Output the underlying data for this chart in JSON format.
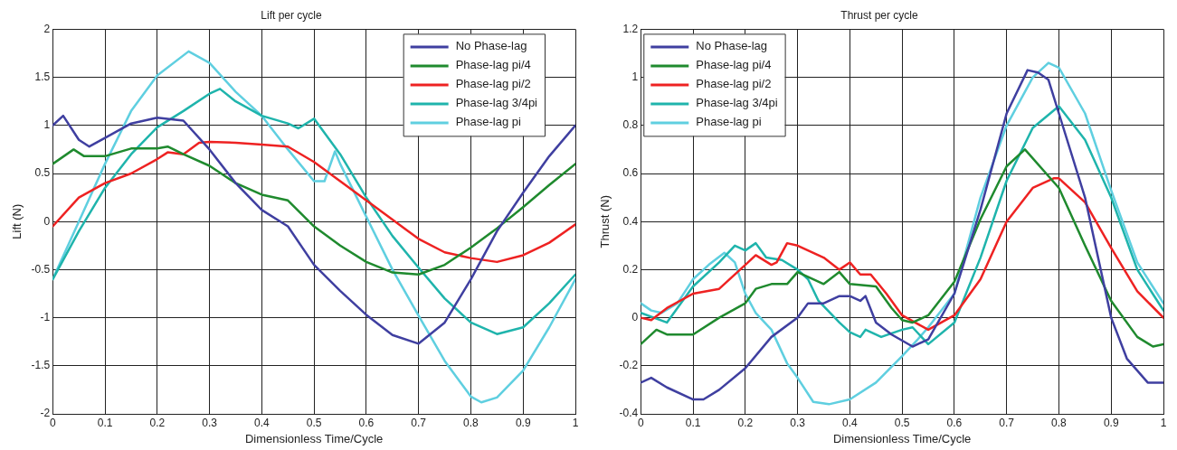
{
  "chart_data": [
    {
      "type": "line",
      "title": "Lift per cycle",
      "xlabel": "Dimensionless Time/Cycle",
      "ylabel": "Lift (N)",
      "xlim": [
        0,
        1
      ],
      "ylim": [
        -2,
        2
      ],
      "xticks": [
        0,
        0.1,
        0.2,
        0.3,
        0.4,
        0.5,
        0.6,
        0.7,
        0.8,
        0.9,
        1
      ],
      "yticks": [
        -2,
        -1.5,
        -1,
        -0.5,
        0,
        0.5,
        1,
        1.5,
        2
      ],
      "grid": true,
      "legend": "top right",
      "series": [
        {
          "name": "No Phase-lag",
          "color": "#3f3fa0",
          "x": [
            0,
            0.02,
            0.05,
            0.07,
            0.1,
            0.15,
            0.2,
            0.25,
            0.3,
            0.35,
            0.4,
            0.45,
            0.5,
            0.55,
            0.6,
            0.65,
            0.7,
            0.75,
            0.8,
            0.85,
            0.9,
            0.95,
            1
          ],
          "values": [
            1.0,
            1.1,
            0.85,
            0.78,
            0.87,
            1.02,
            1.08,
            1.05,
            0.75,
            0.4,
            0.12,
            -0.05,
            -0.45,
            -0.72,
            -0.97,
            -1.18,
            -1.27,
            -1.05,
            -0.6,
            -0.1,
            0.3,
            0.68,
            1.0
          ]
        },
        {
          "name": "Phase-lag pi/4",
          "color": "#1f8a2e",
          "x": [
            0,
            0.04,
            0.06,
            0.1,
            0.15,
            0.2,
            0.22,
            0.25,
            0.3,
            0.35,
            0.4,
            0.45,
            0.5,
            0.55,
            0.6,
            0.65,
            0.7,
            0.75,
            0.8,
            0.85,
            0.9,
            0.95,
            1
          ],
          "values": [
            0.6,
            0.75,
            0.68,
            0.68,
            0.76,
            0.76,
            0.78,
            0.7,
            0.58,
            0.4,
            0.28,
            0.22,
            -0.05,
            -0.25,
            -0.42,
            -0.53,
            -0.55,
            -0.45,
            -0.27,
            -0.07,
            0.15,
            0.38,
            0.6
          ]
        },
        {
          "name": "Phase-lag pi/2",
          "color": "#ee2222",
          "x": [
            0,
            0.05,
            0.1,
            0.15,
            0.2,
            0.22,
            0.25,
            0.28,
            0.3,
            0.35,
            0.4,
            0.45,
            0.5,
            0.55,
            0.6,
            0.65,
            0.7,
            0.75,
            0.8,
            0.85,
            0.9,
            0.95,
            1
          ],
          "values": [
            -0.05,
            0.25,
            0.4,
            0.5,
            0.65,
            0.72,
            0.7,
            0.82,
            0.83,
            0.82,
            0.8,
            0.78,
            0.62,
            0.42,
            0.22,
            0.02,
            -0.18,
            -0.32,
            -0.38,
            -0.42,
            -0.35,
            -0.22,
            -0.03
          ]
        },
        {
          "name": "Phase-lag 3/4pi",
          "color": "#1fb4ac",
          "x": [
            0,
            0.05,
            0.1,
            0.15,
            0.2,
            0.25,
            0.3,
            0.32,
            0.35,
            0.4,
            0.45,
            0.47,
            0.5,
            0.55,
            0.6,
            0.65,
            0.7,
            0.75,
            0.8,
            0.85,
            0.9,
            0.95,
            1
          ],
          "values": [
            -0.6,
            -0.1,
            0.35,
            0.7,
            0.98,
            1.15,
            1.33,
            1.38,
            1.25,
            1.1,
            1.02,
            0.97,
            1.07,
            0.7,
            0.25,
            -0.15,
            -0.48,
            -0.8,
            -1.05,
            -1.17,
            -1.1,
            -0.85,
            -0.55
          ]
        },
        {
          "name": "Phase-lag pi",
          "color": "#5fcfe0",
          "x": [
            0,
            0.05,
            0.1,
            0.15,
            0.2,
            0.26,
            0.3,
            0.35,
            0.4,
            0.45,
            0.5,
            0.52,
            0.54,
            0.55,
            0.6,
            0.65,
            0.7,
            0.75,
            0.8,
            0.82,
            0.85,
            0.9,
            0.95,
            1
          ],
          "values": [
            -0.6,
            0.0,
            0.6,
            1.15,
            1.52,
            1.77,
            1.65,
            1.35,
            1.1,
            0.75,
            0.42,
            0.42,
            0.73,
            0.6,
            0.05,
            -0.5,
            -0.98,
            -1.45,
            -1.82,
            -1.88,
            -1.83,
            -1.55,
            -1.1,
            -0.6
          ]
        }
      ]
    },
    {
      "type": "line",
      "title": "Thrust per cycle",
      "xlabel": "Dimensionless Time/Cycle",
      "ylabel": "Thrust (N)",
      "xlim": [
        0,
        1
      ],
      "ylim": [
        -0.4,
        1.2
      ],
      "xticks": [
        0,
        0.1,
        0.2,
        0.3,
        0.4,
        0.5,
        0.6,
        0.7,
        0.8,
        0.9,
        1
      ],
      "yticks": [
        -0.4,
        -0.2,
        0,
        0.2,
        0.4,
        0.6,
        0.8,
        1,
        1.2
      ],
      "grid": true,
      "legend": "top left",
      "series": [
        {
          "name": "No Phase-lag",
          "color": "#3f3fa0",
          "x": [
            0,
            0.02,
            0.05,
            0.1,
            0.12,
            0.15,
            0.2,
            0.25,
            0.3,
            0.32,
            0.35,
            0.38,
            0.4,
            0.42,
            0.43,
            0.45,
            0.48,
            0.52,
            0.55,
            0.6,
            0.65,
            0.7,
            0.74,
            0.76,
            0.78,
            0.8,
            0.85,
            0.9,
            0.93,
            0.95,
            0.97,
            1
          ],
          "values": [
            -0.27,
            -0.25,
            -0.29,
            -0.34,
            -0.34,
            -0.3,
            -0.21,
            -0.08,
            0,
            0.06,
            0.06,
            0.09,
            0.09,
            0.07,
            0.09,
            -0.02,
            -0.07,
            -0.12,
            -0.09,
            0.1,
            0.45,
            0.85,
            1.03,
            1.02,
            0.99,
            0.85,
            0.5,
            0,
            -0.17,
            -0.22,
            -0.27,
            -0.27
          ]
        },
        {
          "name": "Phase-lag pi/4",
          "color": "#1f8a2e",
          "x": [
            0,
            0.03,
            0.05,
            0.1,
            0.15,
            0.2,
            0.22,
            0.25,
            0.28,
            0.3,
            0.35,
            0.38,
            0.4,
            0.45,
            0.48,
            0.5,
            0.52,
            0.55,
            0.6,
            0.65,
            0.7,
            0.735,
            0.8,
            0.85,
            0.9,
            0.95,
            0.98,
            1
          ],
          "values": [
            -0.11,
            -0.05,
            -0.07,
            -0.07,
            0,
            0.06,
            0.12,
            0.14,
            0.14,
            0.19,
            0.14,
            0.19,
            0.14,
            0.13,
            0.04,
            -0.01,
            -0.02,
            0.01,
            0.15,
            0.41,
            0.63,
            0.7,
            0.54,
            0.3,
            0.07,
            -0.08,
            -0.12,
            -0.11
          ]
        },
        {
          "name": "Phase-lag pi/2",
          "color": "#ee2222",
          "x": [
            0,
            0.02,
            0.05,
            0.1,
            0.15,
            0.2,
            0.22,
            0.25,
            0.26,
            0.28,
            0.3,
            0.35,
            0.38,
            0.4,
            0.42,
            0.44,
            0.47,
            0.5,
            0.55,
            0.6,
            0.65,
            0.7,
            0.75,
            0.79,
            0.8,
            0.85,
            0.9,
            0.95,
            1
          ],
          "values": [
            0,
            -0.01,
            0.04,
            0.1,
            0.12,
            0.22,
            0.26,
            0.22,
            0.23,
            0.31,
            0.3,
            0.25,
            0.2,
            0.23,
            0.18,
            0.18,
            0.1,
            0.01,
            -0.05,
            0.01,
            0.16,
            0.4,
            0.54,
            0.58,
            0.58,
            0.48,
            0.29,
            0.11,
            0
          ]
        },
        {
          "name": "Phase-lag 3/4pi",
          "color": "#1fb4ac",
          "x": [
            0,
            0.05,
            0.1,
            0.15,
            0.18,
            0.2,
            0.22,
            0.24,
            0.27,
            0.3,
            0.32,
            0.34,
            0.38,
            0.4,
            0.42,
            0.43,
            0.46,
            0.5,
            0.52,
            0.55,
            0.6,
            0.65,
            0.7,
            0.75,
            0.8,
            0.85,
            0.9,
            0.95,
            1
          ],
          "values": [
            0.02,
            -0.02,
            0.13,
            0.23,
            0.3,
            0.28,
            0.31,
            0.25,
            0.24,
            0.2,
            0.16,
            0.07,
            -0.02,
            -0.06,
            -0.08,
            -0.05,
            -0.08,
            -0.05,
            -0.04,
            -0.11,
            -0.02,
            0.25,
            0.57,
            0.79,
            0.88,
            0.74,
            0.5,
            0.2,
            0.03
          ]
        },
        {
          "name": "Phase-lag pi",
          "color": "#5fcfe0",
          "x": [
            0,
            0.02,
            0.04,
            0.07,
            0.1,
            0.13,
            0.16,
            0.18,
            0.2,
            0.22,
            0.25,
            0.28,
            0.3,
            0.33,
            0.36,
            0.4,
            0.45,
            0.5,
            0.53,
            0.55,
            0.6,
            0.65,
            0.7,
            0.75,
            0.78,
            0.8,
            0.85,
            0.9,
            0.95,
            1
          ],
          "values": [
            0.06,
            0.03,
            0.02,
            0.06,
            0.16,
            0.22,
            0.27,
            0.23,
            0.1,
            0.02,
            -0.05,
            -0.19,
            -0.25,
            -0.35,
            -0.36,
            -0.34,
            -0.27,
            -0.16,
            -0.09,
            -0.04,
            0.1,
            0.5,
            0.8,
            1.0,
            1.06,
            1.04,
            0.85,
            0.53,
            0.23,
            0.06
          ]
        }
      ]
    }
  ]
}
